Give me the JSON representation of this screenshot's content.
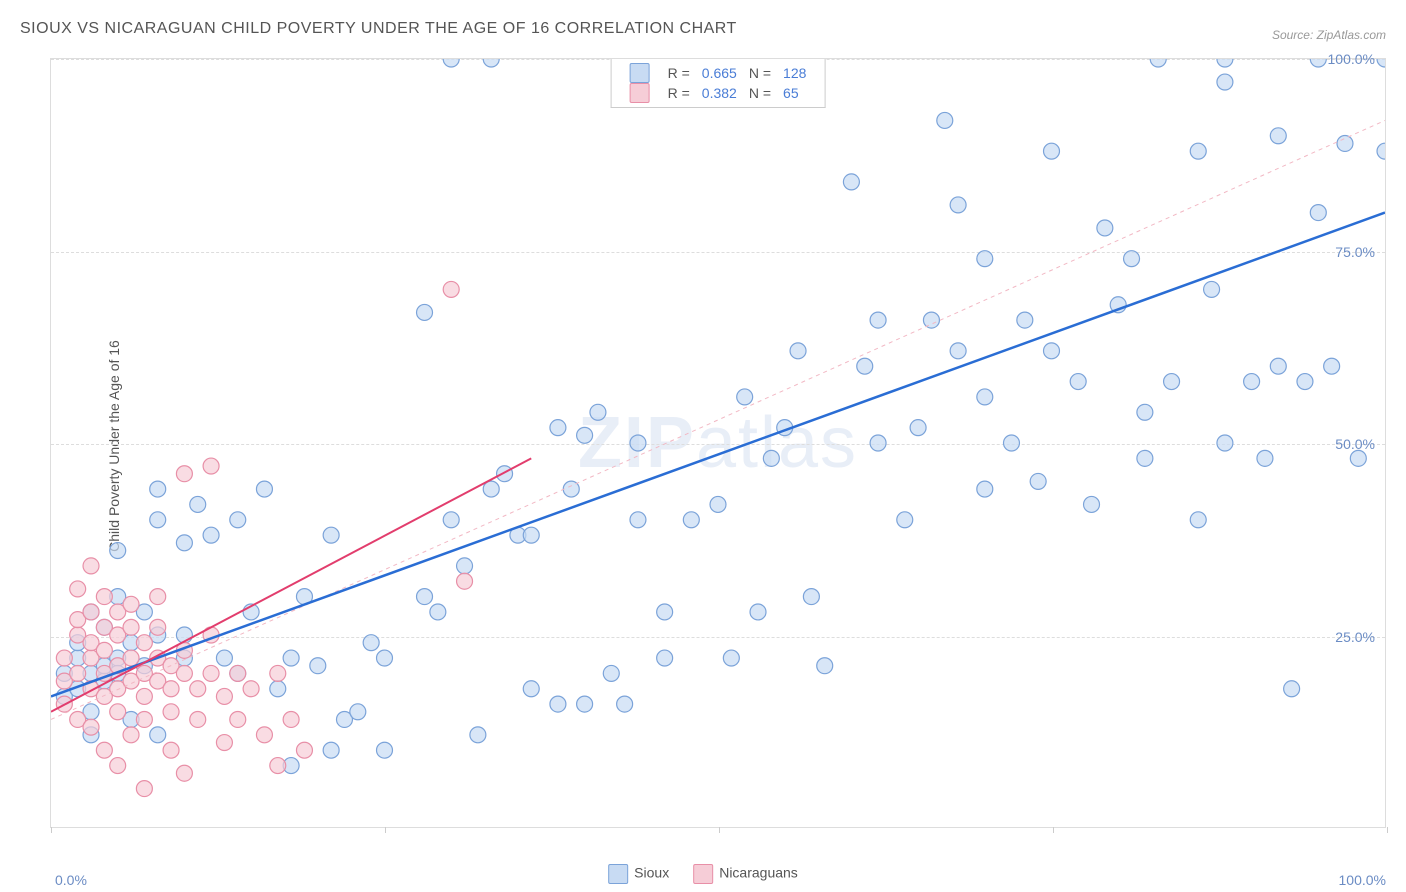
{
  "title": "SIOUX VS NICARAGUAN CHILD POVERTY UNDER THE AGE OF 16 CORRELATION CHART",
  "source_label": "Source:",
  "source_name": "ZipAtlas.com",
  "y_axis_label": "Child Poverty Under the Age of 16",
  "watermark_bold": "ZIP",
  "watermark_light": "atlas",
  "chart": {
    "type": "scatter",
    "xlim": [
      0,
      100
    ],
    "ylim": [
      0,
      100
    ],
    "y_ticks": [
      25.0,
      50.0,
      75.0,
      100.0
    ],
    "y_tick_labels": [
      "25.0%",
      "50.0%",
      "75.0%",
      "100.0%"
    ],
    "x_tick_left": "0.0%",
    "x_tick_right": "100.0%",
    "x_tick_marks": [
      0,
      25,
      50,
      75,
      100
    ],
    "grid_color": "#dddddd",
    "background_color": "#ffffff",
    "marker_radius": 8,
    "marker_stroke_width": 1.2,
    "series": [
      {
        "name": "Sioux",
        "fill": "#c8dbf3",
        "stroke": "#7ba3d9",
        "fill_opacity": 0.7,
        "line_color": "#2a6dd4",
        "line_width": 2.5,
        "line_dash": "none",
        "line_start": [
          0,
          17
        ],
        "line_end": [
          100,
          80
        ],
        "R": 0.665,
        "N": 128,
        "points": [
          [
            1,
            20
          ],
          [
            1,
            17
          ],
          [
            2,
            22
          ],
          [
            2,
            24
          ],
          [
            2,
            18
          ],
          [
            3,
            20
          ],
          [
            3,
            28
          ],
          [
            3,
            15
          ],
          [
            3,
            12
          ],
          [
            4,
            26
          ],
          [
            4,
            19
          ],
          [
            4,
            21
          ],
          [
            5,
            22
          ],
          [
            5,
            20
          ],
          [
            5,
            30
          ],
          [
            5,
            36
          ],
          [
            6,
            24
          ],
          [
            6,
            14
          ],
          [
            7,
            21
          ],
          [
            7,
            28
          ],
          [
            8,
            25
          ],
          [
            8,
            40
          ],
          [
            8,
            44
          ],
          [
            8,
            12
          ],
          [
            10,
            22
          ],
          [
            10,
            37
          ],
          [
            10,
            25
          ],
          [
            11,
            42
          ],
          [
            12,
            38
          ],
          [
            13,
            22
          ],
          [
            14,
            40
          ],
          [
            14,
            20
          ],
          [
            15,
            28
          ],
          [
            16,
            44
          ],
          [
            17,
            18
          ],
          [
            18,
            8
          ],
          [
            18,
            22
          ],
          [
            19,
            30
          ],
          [
            20,
            21
          ],
          [
            21,
            10
          ],
          [
            21,
            38
          ],
          [
            22,
            14
          ],
          [
            23,
            15
          ],
          [
            24,
            24
          ],
          [
            25,
            10
          ],
          [
            25,
            22
          ],
          [
            28,
            30
          ],
          [
            28,
            67
          ],
          [
            29,
            28
          ],
          [
            30,
            40
          ],
          [
            30,
            100
          ],
          [
            31,
            34
          ],
          [
            32,
            12
          ],
          [
            33,
            44
          ],
          [
            33,
            100
          ],
          [
            34,
            46
          ],
          [
            35,
            38
          ],
          [
            36,
            38
          ],
          [
            36,
            18
          ],
          [
            38,
            52
          ],
          [
            38,
            16
          ],
          [
            39,
            44
          ],
          [
            40,
            16
          ],
          [
            40,
            51
          ],
          [
            41,
            54
          ],
          [
            42,
            20
          ],
          [
            43,
            16
          ],
          [
            44,
            40
          ],
          [
            44,
            50
          ],
          [
            45,
            98
          ],
          [
            46,
            22
          ],
          [
            46,
            28
          ],
          [
            48,
            100
          ],
          [
            48,
            40
          ],
          [
            50,
            42
          ],
          [
            51,
            22
          ],
          [
            52,
            56
          ],
          [
            53,
            28
          ],
          [
            54,
            48
          ],
          [
            55,
            52
          ],
          [
            56,
            62
          ],
          [
            57,
            30
          ],
          [
            58,
            21
          ],
          [
            60,
            84
          ],
          [
            61,
            60
          ],
          [
            62,
            66
          ],
          [
            62,
            50
          ],
          [
            64,
            40
          ],
          [
            65,
            52
          ],
          [
            66,
            66
          ],
          [
            67,
            92
          ],
          [
            68,
            62
          ],
          [
            68,
            81
          ],
          [
            70,
            56
          ],
          [
            70,
            44
          ],
          [
            70,
            74
          ],
          [
            72,
            50
          ],
          [
            73,
            66
          ],
          [
            74,
            45
          ],
          [
            75,
            62
          ],
          [
            75,
            88
          ],
          [
            77,
            58
          ],
          [
            78,
            42
          ],
          [
            79,
            78
          ],
          [
            80,
            68
          ],
          [
            81,
            74
          ],
          [
            82,
            54
          ],
          [
            82,
            48
          ],
          [
            83,
            100
          ],
          [
            84,
            58
          ],
          [
            86,
            40
          ],
          [
            86,
            88
          ],
          [
            87,
            70
          ],
          [
            88,
            50
          ],
          [
            88,
            100
          ],
          [
            88,
            97
          ],
          [
            90,
            58
          ],
          [
            91,
            48
          ],
          [
            92,
            60
          ],
          [
            92,
            90
          ],
          [
            93,
            18
          ],
          [
            94,
            58
          ],
          [
            95,
            80
          ],
          [
            95,
            100
          ],
          [
            96,
            60
          ],
          [
            97,
            89
          ],
          [
            98,
            48
          ],
          [
            100,
            100
          ],
          [
            100,
            88
          ]
        ]
      },
      {
        "name": "Nicaraguans",
        "fill": "#f6cdd7",
        "stroke": "#e88fa7",
        "fill_opacity": 0.7,
        "line_color": "#e23d6d",
        "line_width": 2,
        "line_dash": "none",
        "line_start": [
          0,
          15
        ],
        "line_end": [
          36,
          48
        ],
        "dashed_line_color": "#f2b8c4",
        "dashed_line_start": [
          0,
          14
        ],
        "dashed_line_end": [
          100,
          92
        ],
        "R": 0.382,
        "N": 65,
        "points": [
          [
            1,
            19
          ],
          [
            1,
            16
          ],
          [
            1,
            22
          ],
          [
            2,
            20
          ],
          [
            2,
            14
          ],
          [
            2,
            25
          ],
          [
            2,
            27
          ],
          [
            2,
            31
          ],
          [
            3,
            18
          ],
          [
            3,
            22
          ],
          [
            3,
            24
          ],
          [
            3,
            28
          ],
          [
            3,
            13
          ],
          [
            3,
            34
          ],
          [
            4,
            20
          ],
          [
            4,
            17
          ],
          [
            4,
            23
          ],
          [
            4,
            26
          ],
          [
            4,
            30
          ],
          [
            4,
            10
          ],
          [
            5,
            21
          ],
          [
            5,
            18
          ],
          [
            5,
            15
          ],
          [
            5,
            25
          ],
          [
            5,
            8
          ],
          [
            5,
            28
          ],
          [
            6,
            22
          ],
          [
            6,
            19
          ],
          [
            6,
            26
          ],
          [
            6,
            29
          ],
          [
            6,
            12
          ],
          [
            7,
            20
          ],
          [
            7,
            17
          ],
          [
            7,
            24
          ],
          [
            7,
            14
          ],
          [
            7,
            5
          ],
          [
            8,
            22
          ],
          [
            8,
            19
          ],
          [
            8,
            26
          ],
          [
            8,
            30
          ],
          [
            9,
            18
          ],
          [
            9,
            21
          ],
          [
            9,
            15
          ],
          [
            9,
            10
          ],
          [
            10,
            20
          ],
          [
            10,
            23
          ],
          [
            10,
            7
          ],
          [
            10,
            46
          ],
          [
            11,
            18
          ],
          [
            11,
            14
          ],
          [
            12,
            20
          ],
          [
            12,
            25
          ],
          [
            12,
            47
          ],
          [
            13,
            17
          ],
          [
            13,
            11
          ],
          [
            14,
            20
          ],
          [
            14,
            14
          ],
          [
            15,
            18
          ],
          [
            16,
            12
          ],
          [
            17,
            20
          ],
          [
            17,
            8
          ],
          [
            18,
            14
          ],
          [
            19,
            10
          ],
          [
            30,
            70
          ],
          [
            31,
            32
          ]
        ]
      }
    ]
  },
  "legend_bottom": [
    {
      "label": "Sioux",
      "fill": "#c8dbf3",
      "stroke": "#7ba3d9"
    },
    {
      "label": "Nicaraguans",
      "fill": "#f6cdd7",
      "stroke": "#e88fa7"
    }
  ],
  "legend_top_rows": [
    {
      "fill": "#c8dbf3",
      "stroke": "#7ba3d9",
      "r_label": "R =",
      "r_val": "0.665",
      "n_label": "N =",
      "n_val": "128"
    },
    {
      "fill": "#f6cdd7",
      "stroke": "#e88fa7",
      "r_label": "R =",
      "r_val": "0.382",
      "n_label": "N =",
      "n_val": "65"
    }
  ]
}
